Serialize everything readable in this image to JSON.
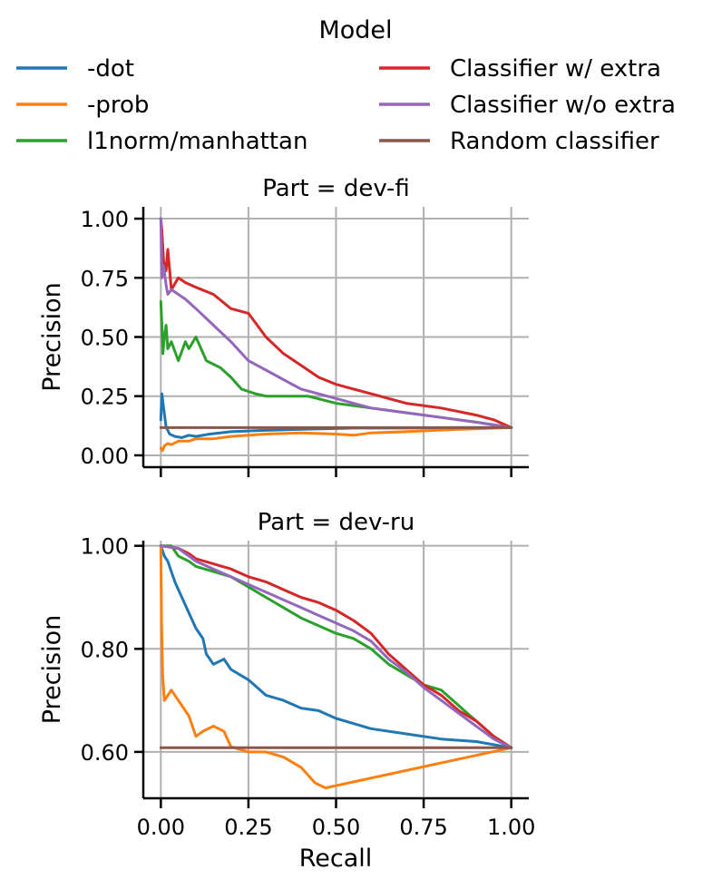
{
  "legend": {
    "title": "Model",
    "placement": "top-center",
    "entries": [
      {
        "label": "-dot",
        "color": "#1f77b4"
      },
      {
        "label": "-prob",
        "color": "#ff7f0e"
      },
      {
        "label": "l1norm/manhattan",
        "color": "#2ca02c"
      },
      {
        "label": "Classifier w/ extra",
        "color": "#d62728"
      },
      {
        "label": "Classifier w/o extra",
        "color": "#9467bd"
      },
      {
        "label": "Random classifier",
        "color": "#8c564b"
      }
    ]
  },
  "chart_data": [
    {
      "type": "line",
      "title": "Part = dev-fi",
      "xlabel": "",
      "ylabel": "Precision",
      "xlim": [
        -0.05,
        1.05
      ],
      "ylim": [
        -0.05,
        1.05
      ],
      "xticks": [
        0.0,
        0.25,
        0.5,
        0.75,
        1.0
      ],
      "xtick_labels": [
        "",
        "",
        "",
        "",
        ""
      ],
      "yticks": [
        0.0,
        0.25,
        0.5,
        0.75,
        1.0
      ],
      "ytick_labels": [
        "0.00",
        "0.25",
        "0.50",
        "0.75",
        "1.00"
      ],
      "grid": true,
      "series": [
        {
          "name": "-dot",
          "color": "#1f77b4",
          "x": [
            0,
            0.003,
            0.008,
            0.015,
            0.025,
            0.04,
            0.06,
            0.08,
            0.1,
            0.14,
            0.2,
            0.28,
            0.4,
            0.55,
            0.7,
            0.85,
            1.0
          ],
          "y": [
            0.15,
            0.26,
            0.2,
            0.12,
            0.09,
            0.08,
            0.075,
            0.085,
            0.08,
            0.09,
            0.1,
            0.105,
            0.11,
            0.115,
            0.115,
            0.117,
            0.117
          ]
        },
        {
          "name": "-prob",
          "color": "#ff7f0e",
          "x": [
            0,
            0.005,
            0.01,
            0.02,
            0.03,
            0.05,
            0.08,
            0.1,
            0.15,
            0.2,
            0.3,
            0.4,
            0.5,
            0.55,
            0.6,
            0.7,
            0.85,
            1.0
          ],
          "y": [
            0.03,
            0.02,
            0.04,
            0.05,
            0.045,
            0.06,
            0.06,
            0.07,
            0.07,
            0.08,
            0.09,
            0.095,
            0.09,
            0.085,
            0.095,
            0.1,
            0.11,
            0.117
          ]
        },
        {
          "name": "l1norm/manhattan",
          "color": "#2ca02c",
          "x": [
            0,
            0.003,
            0.006,
            0.01,
            0.015,
            0.02,
            0.03,
            0.05,
            0.07,
            0.08,
            0.1,
            0.13,
            0.17,
            0.2,
            0.23,
            0.27,
            0.3,
            0.35,
            0.42,
            0.5,
            0.6,
            0.7,
            0.8,
            0.9,
            1.0
          ],
          "y": [
            0.65,
            0.55,
            0.43,
            0.5,
            0.55,
            0.45,
            0.48,
            0.4,
            0.48,
            0.45,
            0.5,
            0.4,
            0.37,
            0.33,
            0.28,
            0.26,
            0.25,
            0.25,
            0.25,
            0.22,
            0.2,
            0.18,
            0.16,
            0.14,
            0.117
          ]
        },
        {
          "name": "Classifier w/ extra",
          "color": "#d62728",
          "x": [
            0,
            0.003,
            0.008,
            0.015,
            0.02,
            0.03,
            0.05,
            0.07,
            0.1,
            0.15,
            0.2,
            0.25,
            0.3,
            0.35,
            0.4,
            0.45,
            0.5,
            0.6,
            0.7,
            0.8,
            0.9,
            0.95,
            1.0
          ],
          "y": [
            1.0,
            0.95,
            0.82,
            0.78,
            0.87,
            0.7,
            0.75,
            0.73,
            0.71,
            0.68,
            0.62,
            0.6,
            0.5,
            0.43,
            0.38,
            0.33,
            0.3,
            0.26,
            0.22,
            0.2,
            0.17,
            0.15,
            0.117
          ]
        },
        {
          "name": "Classifier w/o extra",
          "color": "#9467bd",
          "x": [
            0,
            0.003,
            0.008,
            0.015,
            0.02,
            0.03,
            0.05,
            0.07,
            0.1,
            0.15,
            0.2,
            0.25,
            0.3,
            0.35,
            0.4,
            0.5,
            0.6,
            0.7,
            0.8,
            0.9,
            1.0
          ],
          "y": [
            1.0,
            0.75,
            0.8,
            0.72,
            0.68,
            0.7,
            0.68,
            0.66,
            0.62,
            0.55,
            0.48,
            0.4,
            0.36,
            0.32,
            0.28,
            0.24,
            0.2,
            0.18,
            0.16,
            0.14,
            0.117
          ]
        },
        {
          "name": "Random classifier",
          "color": "#8c564b",
          "x": [
            0,
            1.0
          ],
          "y": [
            0.117,
            0.117
          ]
        }
      ]
    },
    {
      "type": "line",
      "title": "Part = dev-ru",
      "xlabel": "Recall",
      "ylabel": "Precision",
      "xlim": [
        -0.05,
        1.05
      ],
      "ylim": [
        0.51,
        1.01
      ],
      "xticks": [
        0.0,
        0.25,
        0.5,
        0.75,
        1.0
      ],
      "xtick_labels": [
        "0.00",
        "0.25",
        "0.50",
        "0.75",
        "1.00"
      ],
      "yticks": [
        0.6,
        0.8,
        1.0
      ],
      "ytick_labels": [
        "0.60",
        "0.80",
        "1.00"
      ],
      "grid": true,
      "series": [
        {
          "name": "-dot",
          "color": "#1f77b4",
          "x": [
            0,
            0.01,
            0.02,
            0.04,
            0.06,
            0.08,
            0.1,
            0.12,
            0.13,
            0.15,
            0.18,
            0.2,
            0.25,
            0.3,
            0.35,
            0.4,
            0.45,
            0.5,
            0.6,
            0.7,
            0.8,
            0.9,
            1.0
          ],
          "y": [
            1.0,
            0.98,
            0.97,
            0.93,
            0.9,
            0.87,
            0.84,
            0.82,
            0.79,
            0.77,
            0.78,
            0.76,
            0.74,
            0.71,
            0.7,
            0.685,
            0.68,
            0.665,
            0.645,
            0.635,
            0.625,
            0.62,
            0.608
          ]
        },
        {
          "name": "-prob",
          "color": "#ff7f0e",
          "x": [
            0,
            0.002,
            0.005,
            0.01,
            0.03,
            0.06,
            0.08,
            0.1,
            0.12,
            0.15,
            0.18,
            0.2,
            0.25,
            0.28,
            0.3,
            0.35,
            0.4,
            0.44,
            0.47,
            1.0
          ],
          "y": [
            1.0,
            0.85,
            0.75,
            0.7,
            0.72,
            0.69,
            0.67,
            0.63,
            0.64,
            0.65,
            0.64,
            0.61,
            0.6,
            0.6,
            0.6,
            0.59,
            0.57,
            0.54,
            0.53,
            0.608
          ]
        },
        {
          "name": "l1norm/manhattan",
          "color": "#2ca02c",
          "x": [
            0,
            0.03,
            0.05,
            0.08,
            0.1,
            0.15,
            0.2,
            0.25,
            0.3,
            0.35,
            0.4,
            0.5,
            0.55,
            0.6,
            0.65,
            0.7,
            0.75,
            0.8,
            0.85,
            0.9,
            0.95,
            1.0
          ],
          "y": [
            1.0,
            1.0,
            0.98,
            0.97,
            0.96,
            0.95,
            0.94,
            0.92,
            0.9,
            0.88,
            0.86,
            0.83,
            0.82,
            0.8,
            0.77,
            0.75,
            0.73,
            0.72,
            0.69,
            0.66,
            0.63,
            0.608
          ]
        },
        {
          "name": "Classifier w/ extra",
          "color": "#d62728",
          "x": [
            0,
            0.05,
            0.08,
            0.1,
            0.15,
            0.2,
            0.25,
            0.3,
            0.35,
            0.4,
            0.45,
            0.5,
            0.55,
            0.6,
            0.65,
            0.7,
            0.75,
            0.8,
            0.85,
            0.9,
            0.95,
            1.0
          ],
          "y": [
            1.0,
            0.995,
            0.985,
            0.975,
            0.965,
            0.955,
            0.94,
            0.93,
            0.915,
            0.9,
            0.89,
            0.875,
            0.855,
            0.83,
            0.79,
            0.76,
            0.73,
            0.71,
            0.68,
            0.66,
            0.63,
            0.608
          ]
        },
        {
          "name": "Classifier w/o extra",
          "color": "#9467bd",
          "x": [
            0,
            0.05,
            0.08,
            0.1,
            0.15,
            0.2,
            0.25,
            0.3,
            0.35,
            0.4,
            0.45,
            0.5,
            0.55,
            0.6,
            0.65,
            0.7,
            0.75,
            0.8,
            0.85,
            0.9,
            0.95,
            1.0
          ],
          "y": [
            1.0,
            0.995,
            0.98,
            0.97,
            0.955,
            0.94,
            0.925,
            0.91,
            0.895,
            0.88,
            0.865,
            0.85,
            0.835,
            0.815,
            0.78,
            0.755,
            0.725,
            0.7,
            0.675,
            0.65,
            0.625,
            0.608
          ]
        },
        {
          "name": "Random classifier",
          "color": "#8c564b",
          "x": [
            0,
            1.0
          ],
          "y": [
            0.608,
            0.608
          ]
        }
      ]
    }
  ]
}
